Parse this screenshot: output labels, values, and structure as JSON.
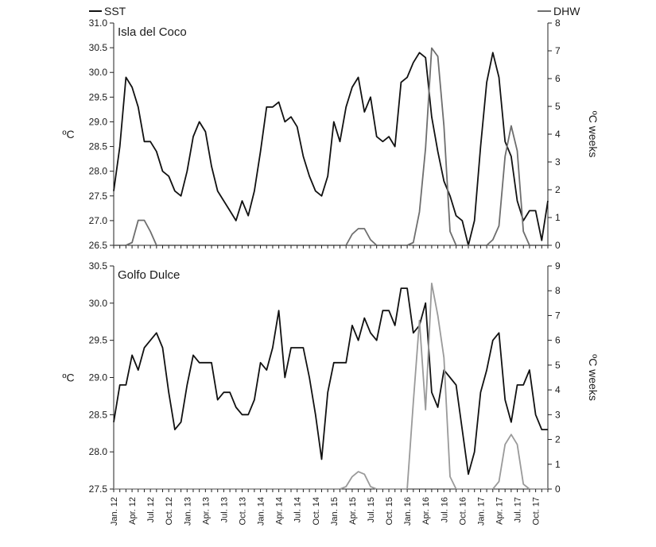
{
  "legend": {
    "sst_label": "SST",
    "dhw_label": "DHW"
  },
  "colors": {
    "sst": "#111111",
    "dhw_coco": "#6e6e6e",
    "dhw_golfo": "#9a9a9a",
    "axis": "#222222"
  },
  "x_tick_labels": [
    "Jan. 12",
    "Apr. 12",
    "Jul. 12",
    "Oct. 12",
    "Jan. 13",
    "Apr. 13",
    "Jul. 13",
    "Oct. 13",
    "Jan. 14",
    "Apr. 14",
    "Jul. 14",
    "Oct. 14",
    "Jan. 15",
    "Apr. 15",
    "Jul. 15",
    "Oct. 15",
    "Jan. 16",
    "Apr. 16",
    "Jul. 16",
    "Oct. 16",
    "Jan. 17",
    "Apr. 17",
    "Jul. 17",
    "Oct. 17"
  ],
  "chart_data": [
    {
      "type": "line",
      "title": "Isla del Coco",
      "ylabel": "ºC",
      "y2label": "ºC weeks",
      "ylim": [
        26.5,
        31.0
      ],
      "yticks": [
        "26.5",
        "27.0",
        "27.5",
        "28.0",
        "28.5",
        "29.0",
        "29.5",
        "30.0",
        "30.5",
        "31.0"
      ],
      "y2lim": [
        0,
        8
      ],
      "y2ticks": [
        "0",
        "1",
        "2",
        "3",
        "4",
        "5",
        "6",
        "7",
        "8"
      ],
      "series": [
        {
          "name": "SST",
          "axis": "left",
          "values": [
            27.6,
            28.5,
            29.9,
            29.7,
            29.3,
            28.6,
            28.6,
            28.4,
            28.0,
            27.9,
            27.6,
            27.5,
            28.0,
            28.7,
            29.0,
            28.8,
            28.1,
            27.6,
            27.4,
            27.2,
            27.0,
            27.4,
            27.1,
            27.6,
            28.4,
            29.3,
            29.3,
            29.4,
            29.0,
            29.1,
            28.9,
            28.3,
            27.9,
            27.6,
            27.5,
            27.9,
            29.0,
            28.6,
            29.3,
            29.7,
            29.9,
            29.2,
            29.5,
            28.7,
            28.6,
            28.7,
            28.5,
            29.8,
            29.9,
            30.2,
            30.4,
            30.3,
            29.1,
            28.4,
            27.8,
            27.5,
            27.1,
            27.0,
            26.5,
            27.0,
            28.5,
            29.8,
            30.4,
            29.9,
            28.6,
            28.3,
            27.4,
            27.0,
            27.2,
            27.2,
            26.6,
            27.4
          ]
        },
        {
          "name": "DHW",
          "axis": "right",
          "values": [
            0,
            0,
            0,
            0.1,
            0.9,
            0.9,
            0.5,
            0,
            0,
            0,
            0,
            0,
            0,
            0,
            0,
            0,
            0,
            0,
            0,
            0,
            0,
            0,
            0,
            0,
            0,
            0,
            0,
            0,
            0,
            0,
            0,
            0,
            0,
            0,
            0,
            0,
            0,
            0,
            0,
            0.4,
            0.6,
            0.6,
            0.2,
            0,
            0,
            0,
            0,
            0,
            0,
            0.1,
            1.2,
            3.5,
            7.1,
            6.8,
            4.3,
            0.5,
            0,
            0,
            0,
            0,
            0,
            0,
            0.2,
            0.7,
            3.2,
            4.3,
            3.4,
            0.5,
            0,
            0,
            0,
            0
          ]
        }
      ]
    },
    {
      "type": "line",
      "title": "Golfo Dulce",
      "ylabel": "ºC",
      "y2label": "ºC weeks",
      "ylim": [
        27.5,
        30.5
      ],
      "yticks": [
        "27.5",
        "28.0",
        "28.5",
        "29.0",
        "29.5",
        "30.0",
        "30.5"
      ],
      "y2lim": [
        0,
        9
      ],
      "y2ticks": [
        "0",
        "1",
        "2",
        "3",
        "4",
        "5",
        "6",
        "7",
        "8",
        "9"
      ],
      "series": [
        {
          "name": "SST",
          "axis": "left",
          "values": [
            28.4,
            28.9,
            28.9,
            29.3,
            29.1,
            29.4,
            29.5,
            29.6,
            29.4,
            28.8,
            28.3,
            28.4,
            28.9,
            29.3,
            29.2,
            29.2,
            29.2,
            28.7,
            28.8,
            28.8,
            28.6,
            28.5,
            28.5,
            28.7,
            29.2,
            29.1,
            29.4,
            29.9,
            29.0,
            29.4,
            29.4,
            29.4,
            29.0,
            28.5,
            27.9,
            28.8,
            29.2,
            29.2,
            29.2,
            29.7,
            29.5,
            29.8,
            29.6,
            29.5,
            29.9,
            29.9,
            29.7,
            30.2,
            30.2,
            29.6,
            29.7,
            30.0,
            28.8,
            28.6,
            29.1,
            29.0,
            28.9,
            28.3,
            27.7,
            28.0,
            28.8,
            29.1,
            29.5,
            29.6,
            28.7,
            28.4,
            28.9,
            28.9,
            29.1,
            28.5,
            28.3,
            28.3
          ]
        },
        {
          "name": "DHW",
          "axis": "right",
          "values": [
            0,
            0,
            0,
            0,
            0,
            0,
            0,
            0,
            0,
            0,
            0,
            0,
            0,
            0,
            0,
            0,
            0,
            0,
            0,
            0,
            0,
            0,
            0,
            0,
            0,
            0,
            0,
            0,
            0,
            0,
            0,
            0,
            0,
            0,
            0,
            0,
            0,
            0,
            0.1,
            0.5,
            0.7,
            0.6,
            0.1,
            0,
            0,
            0,
            0,
            0,
            0,
            3.5,
            6.8,
            3.2,
            8.3,
            7.0,
            5.3,
            0.5,
            0,
            0,
            0,
            0,
            0,
            0,
            0,
            0.3,
            1.8,
            2.2,
            1.8,
            0.2,
            0,
            0,
            0,
            0
          ]
        }
      ]
    }
  ]
}
